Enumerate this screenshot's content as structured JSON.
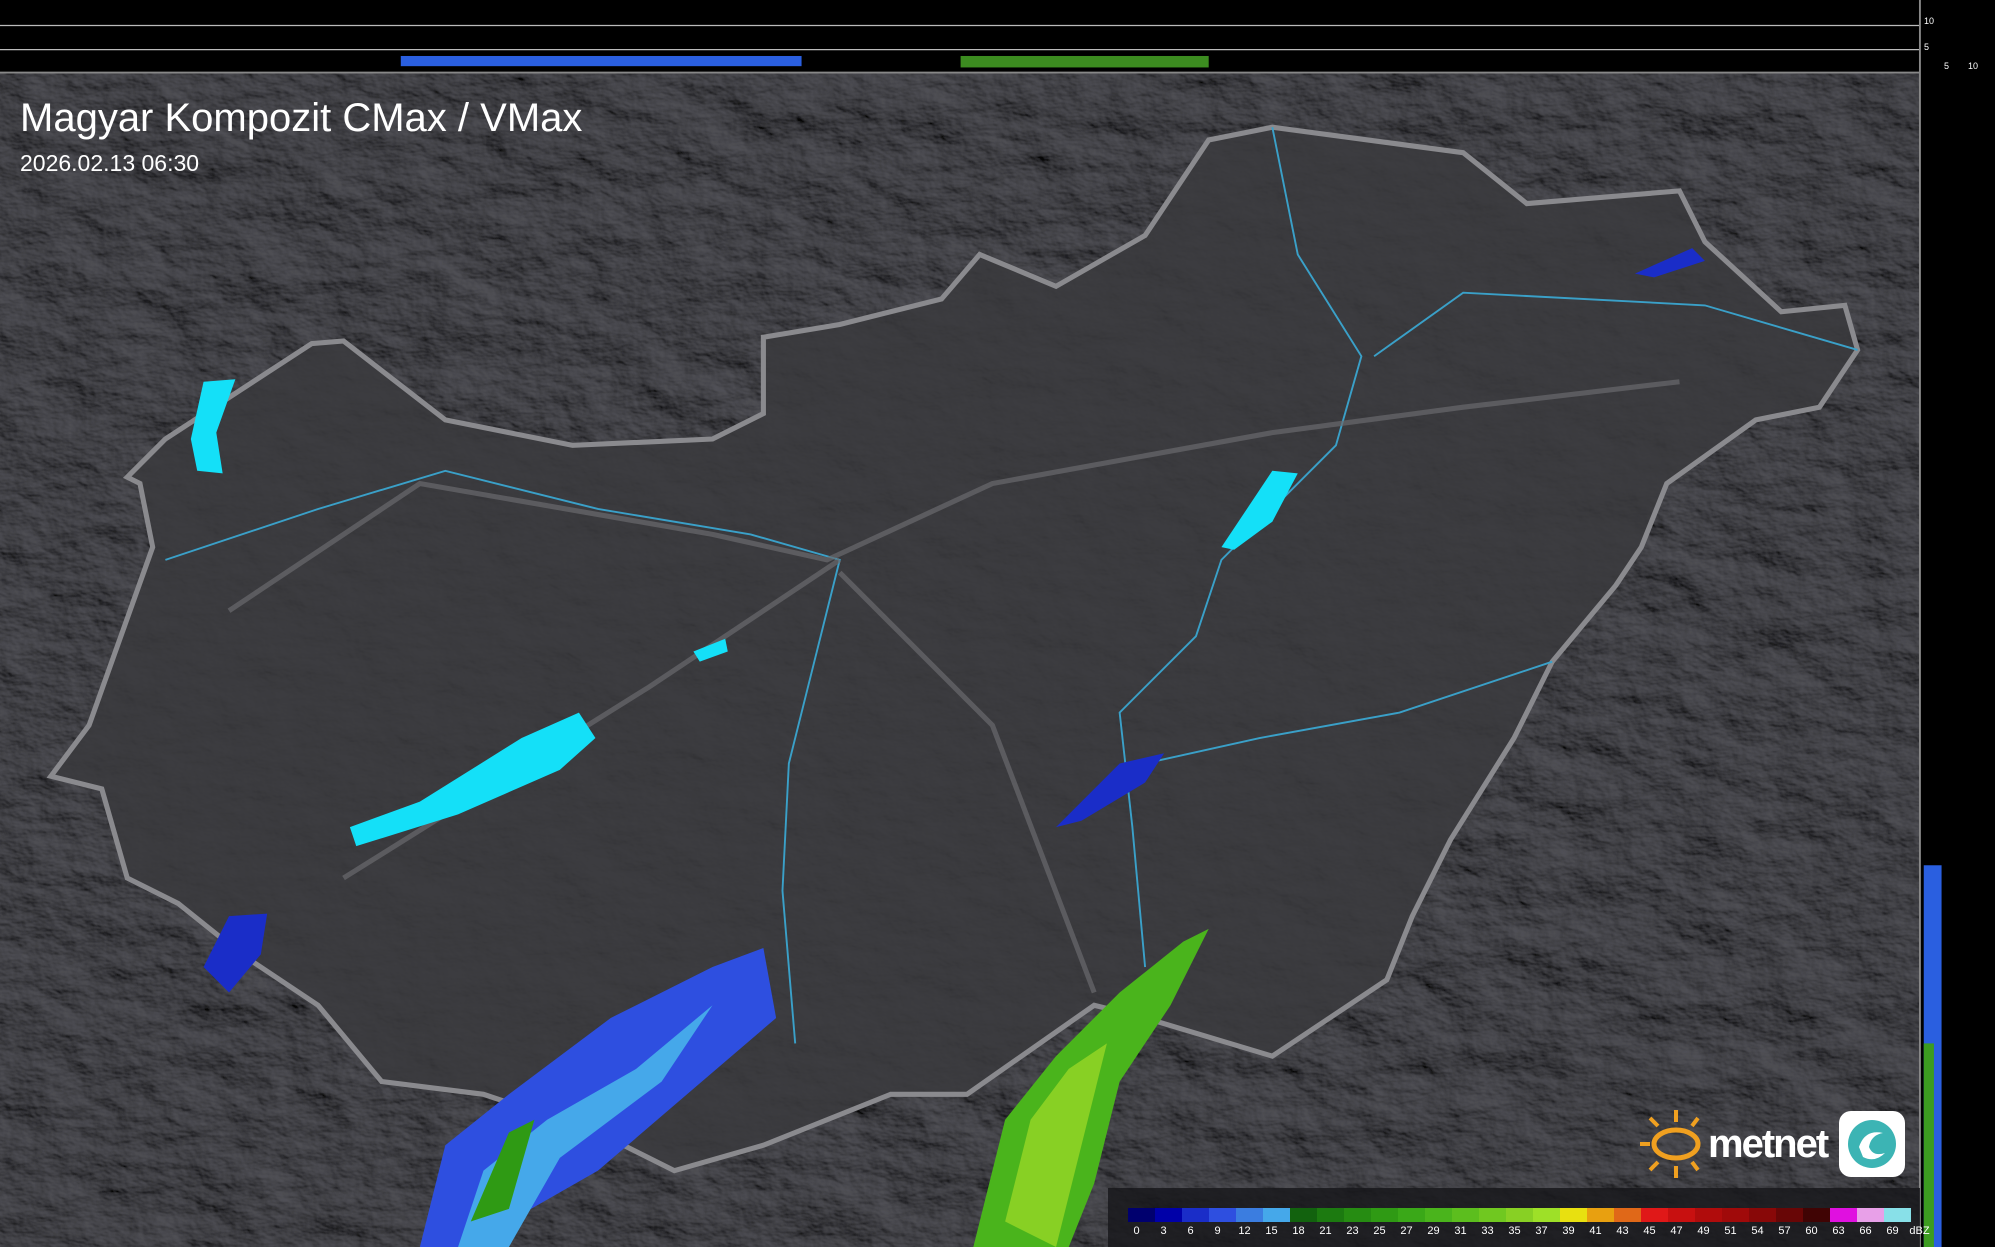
{
  "header": {
    "title": "Magyar Kompozit CMax / VMax",
    "timestamp": "2026.02.13 06:30"
  },
  "profile_axes": {
    "vertical_ticks": [
      "10",
      "5"
    ],
    "horizontal_ticks": [
      "5",
      "10"
    ]
  },
  "legend": {
    "unit": "dBZ",
    "labels": [
      "0",
      "3",
      "6",
      "9",
      "12",
      "15",
      "18",
      "21",
      "23",
      "25",
      "27",
      "29",
      "31",
      "33",
      "35",
      "37",
      "39",
      "41",
      "43",
      "45",
      "47",
      "49",
      "51",
      "54",
      "57",
      "60",
      "63",
      "66",
      "69"
    ],
    "colors": [
      "#00006e",
      "#0000a8",
      "#1a2dc8",
      "#2e4fe0",
      "#3b7de0",
      "#45a8ea",
      "#12620e",
      "#1c7a10",
      "#268c12",
      "#2f9a14",
      "#3aa818",
      "#4ab41c",
      "#5cbe1e",
      "#70c820",
      "#88d024",
      "#9ee028",
      "#e8e010",
      "#e8a010",
      "#e06818",
      "#e01818",
      "#c81010",
      "#b00c0c",
      "#a00a0a",
      "#880808",
      "#680606",
      "#400404",
      "#e010e0",
      "#e8a0e8",
      "#88e0e8"
    ]
  },
  "brand": {
    "name": "metnet"
  },
  "colors": {
    "country": "#3a3a3e",
    "border": "#8a8a8e",
    "rivers": "#3aa0c8",
    "lakes": "#14e0f8",
    "background": "#2b2b2e"
  }
}
